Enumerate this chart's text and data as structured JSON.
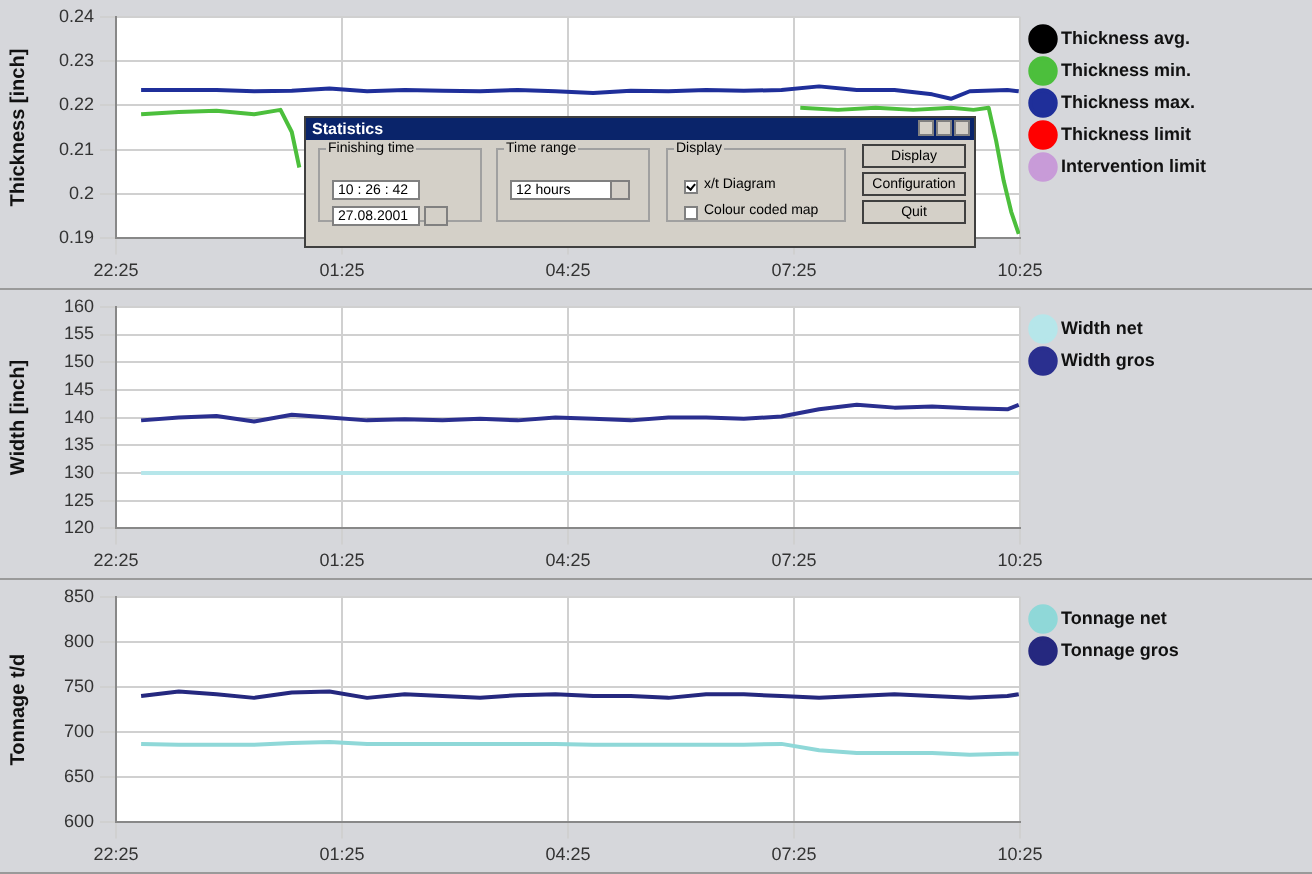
{
  "chart_data": [
    {
      "type": "line",
      "ylabel": "Thickness [inch]",
      "xlim": [
        "2001-08-26T22:25",
        "2001-08-27T10:25"
      ],
      "xticks": [
        {
          "value": "2001-08-26T22:25",
          "label": "22:25"
        },
        {
          "value": "2001-08-27T01:25",
          "label": "01:25"
        },
        {
          "value": "2001-08-27T04:25",
          "label": "04:25"
        },
        {
          "value": "2001-08-27T07:25",
          "label": "07:25"
        },
        {
          "value": "2001-08-27T10:25",
          "label": "10:25"
        }
      ],
      "ylim": [
        0.19,
        0.24
      ],
      "yticks": [
        0.19,
        0.2,
        0.21,
        0.22,
        0.23,
        0.24
      ],
      "grid": true,
      "legend": "right",
      "marker": "none",
      "line_style": "solid",
      "x": [
        "2001-08-26T22:45",
        "2001-08-26T23:15",
        "2001-08-26T23:45",
        "2001-08-27T00:15",
        "2001-08-27T00:45",
        "2001-08-27T01:15",
        "2001-08-27T01:45",
        "2001-08-27T02:15",
        "2001-08-27T02:45",
        "2001-08-27T03:15",
        "2001-08-27T03:45",
        "2001-08-27T04:15",
        "2001-08-27T04:45",
        "2001-08-27T05:15",
        "2001-08-27T05:45",
        "2001-08-27T06:15",
        "2001-08-27T06:45",
        "2001-08-27T07:15",
        "2001-08-27T07:45",
        "2001-08-27T08:15",
        "2001-08-27T08:45",
        "2001-08-27T09:15",
        "2001-08-27T09:30",
        "2001-08-27T09:45",
        "2001-08-27T10:15",
        "2001-08-27T10:24"
      ],
      "series": [
        {
          "name": "Thickness avg.",
          "color": "#000000",
          "values": [
            null,
            null,
            null,
            null,
            null,
            null,
            null,
            null,
            null,
            null,
            null,
            null,
            null,
            null,
            null,
            null,
            null,
            null,
            null,
            null,
            null,
            null,
            null,
            null,
            null,
            null
          ]
        },
        {
          "name": "Thickness min.",
          "color": "#4cbf3c",
          "x": [
            "2001-08-26T22:45",
            "2001-08-26T23:15",
            "2001-08-26T23:45",
            "2001-08-27T00:15",
            "2001-08-27T00:36",
            "2001-08-27T00:45",
            "2001-08-27T00:51",
            "2001-08-27T00:54",
            "2001-08-27T01:06",
            "2001-08-27T01:18",
            "2001-08-27T01:30",
            "2001-08-27T01:45",
            "2001-08-27T07:15",
            "2001-08-27T07:30",
            "2001-08-27T08:00",
            "2001-08-27T08:30",
            "2001-08-27T09:00",
            "2001-08-27T09:30",
            "2001-08-27T09:48",
            "2001-08-27T10:00",
            "2001-08-27T10:06",
            "2001-08-27T10:12",
            "2001-08-27T10:18",
            "2001-08-27T10:24"
          ],
          "values": [
            0.218,
            0.2185,
            0.2188,
            0.218,
            0.219,
            0.214,
            0.206,
            null,
            null,
            null,
            null,
            null,
            null,
            0.2195,
            0.219,
            0.2195,
            0.219,
            0.2195,
            0.219,
            0.2195,
            0.212,
            0.203,
            0.196,
            0.191
          ]
        },
        {
          "name": "Thickness max.",
          "color": "#1f2f9a",
          "values": [
            0.2235,
            0.2235,
            0.2235,
            0.2232,
            0.2233,
            0.2238,
            0.2232,
            0.2235,
            0.2233,
            0.2232,
            0.2235,
            0.2232,
            0.2228,
            0.2233,
            0.2232,
            0.2235,
            0.2233,
            0.2235,
            0.2243,
            0.2235,
            0.2235,
            0.2225,
            0.2215,
            0.2232,
            0.2235,
            0.2232
          ]
        },
        {
          "name": "Thickness limit",
          "color": "#ff0000",
          "values": [
            null,
            null,
            null,
            null,
            null,
            null,
            null,
            null,
            null,
            null,
            null,
            null,
            null,
            null,
            null,
            null,
            null,
            null,
            null,
            null,
            null,
            null,
            null,
            null,
            null,
            null
          ]
        },
        {
          "name": "Intervention limit",
          "color": "#c89bd8",
          "values": [
            null,
            null,
            null,
            null,
            null,
            null,
            null,
            null,
            null,
            null,
            null,
            null,
            null,
            null,
            null,
            null,
            null,
            null,
            null,
            null,
            null,
            null,
            null,
            null,
            null,
            null
          ]
        }
      ],
      "annotations": [
        "Statistics",
        "Finishing time",
        "10 : 26 : 42",
        "27.08.2001",
        "Time range",
        "12 hours",
        "Display",
        "x/t Diagram",
        "Colour coded map",
        "Display",
        "Configuration",
        "Quit"
      ]
    },
    {
      "type": "line",
      "ylabel": "Width [inch]",
      "xlim": [
        "2001-08-26T22:25",
        "2001-08-27T10:25"
      ],
      "xticks": [
        {
          "value": "2001-08-26T22:25",
          "label": "22:25"
        },
        {
          "value": "2001-08-27T01:25",
          "label": "01:25"
        },
        {
          "value": "2001-08-27T04:25",
          "label": "04:25"
        },
        {
          "value": "2001-08-27T07:25",
          "label": "07:25"
        },
        {
          "value": "2001-08-27T10:25",
          "label": "10:25"
        }
      ],
      "ylim": [
        120,
        160
      ],
      "yticks": [
        120,
        125,
        130,
        135,
        140,
        145,
        150,
        155,
        160
      ],
      "grid": true,
      "legend": "right",
      "marker": "none",
      "line_style": "solid",
      "x": [
        "2001-08-26T22:45",
        "2001-08-26T23:15",
        "2001-08-26T23:45",
        "2001-08-27T00:15",
        "2001-08-27T00:45",
        "2001-08-27T01:15",
        "2001-08-27T01:45",
        "2001-08-27T02:15",
        "2001-08-27T02:45",
        "2001-08-27T03:15",
        "2001-08-27T03:45",
        "2001-08-27T04:15",
        "2001-08-27T04:45",
        "2001-08-27T05:15",
        "2001-08-27T05:45",
        "2001-08-27T06:15",
        "2001-08-27T06:45",
        "2001-08-27T07:15",
        "2001-08-27T07:45",
        "2001-08-27T08:15",
        "2001-08-27T08:45",
        "2001-08-27T09:15",
        "2001-08-27T09:45",
        "2001-08-27T10:15",
        "2001-08-27T10:24"
      ],
      "series": [
        {
          "name": "Width net",
          "color": "#b6e6ea",
          "values": [
            130,
            130,
            130,
            130,
            130,
            130,
            130,
            130,
            130,
            130,
            130,
            130,
            130,
            130,
            130,
            130,
            130,
            130,
            130,
            130,
            130,
            130,
            130,
            130,
            130
          ]
        },
        {
          "name": "Width gros",
          "color": "#2a2f8f",
          "values": [
            139.5,
            140,
            140.3,
            139.3,
            140.5,
            140,
            139.5,
            139.7,
            139.5,
            139.8,
            139.5,
            140,
            139.8,
            139.5,
            140,
            140,
            139.8,
            140.2,
            141.5,
            142.3,
            141.8,
            142,
            141.7,
            141.5,
            142.3
          ]
        }
      ]
    },
    {
      "type": "line",
      "ylabel": "Tonnage t/d",
      "xlim": [
        "2001-08-26T22:25",
        "2001-08-27T10:25"
      ],
      "xticks": [
        {
          "value": "2001-08-26T22:25",
          "label": "22:25"
        },
        {
          "value": "2001-08-27T01:25",
          "label": "01:25"
        },
        {
          "value": "2001-08-27T04:25",
          "label": "04:25"
        },
        {
          "value": "2001-08-27T07:25",
          "label": "07:25"
        },
        {
          "value": "2001-08-27T10:25",
          "label": "10:25"
        }
      ],
      "ylim": [
        600,
        850
      ],
      "yticks": [
        600,
        650,
        700,
        750,
        800,
        850
      ],
      "grid": true,
      "legend": "right",
      "marker": "none",
      "line_style": "solid",
      "x": [
        "2001-08-26T22:45",
        "2001-08-26T23:15",
        "2001-08-26T23:45",
        "2001-08-27T00:15",
        "2001-08-27T00:45",
        "2001-08-27T01:15",
        "2001-08-27T01:45",
        "2001-08-27T02:15",
        "2001-08-27T02:45",
        "2001-08-27T03:15",
        "2001-08-27T03:45",
        "2001-08-27T04:15",
        "2001-08-27T04:45",
        "2001-08-27T05:15",
        "2001-08-27T05:45",
        "2001-08-27T06:15",
        "2001-08-27T06:45",
        "2001-08-27T07:15",
        "2001-08-27T07:45",
        "2001-08-27T08:15",
        "2001-08-27T08:45",
        "2001-08-27T09:15",
        "2001-08-27T09:45",
        "2001-08-27T10:15",
        "2001-08-27T10:24"
      ],
      "series": [
        {
          "name": "Tonnage net",
          "color": "#8fd8d8",
          "values": [
            687,
            686,
            686,
            686,
            688,
            689,
            687,
            687,
            687,
            687,
            687,
            687,
            686,
            686,
            686,
            686,
            686,
            687,
            680,
            677,
            677,
            677,
            675,
            676,
            676
          ]
        },
        {
          "name": "Tonnage gros",
          "color": "#25287f",
          "values": [
            740,
            745,
            742,
            738,
            744,
            745,
            738,
            742,
            740,
            738,
            741,
            742,
            740,
            740,
            738,
            742,
            742,
            740,
            738,
            740,
            742,
            740,
            738,
            740,
            742
          ]
        }
      ]
    }
  ]
}
